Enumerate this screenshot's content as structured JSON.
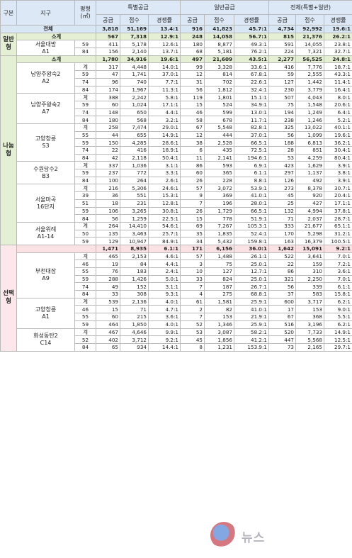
{
  "headers": {
    "type": "구분",
    "complex": "지구",
    "area": "평형\n(㎡)",
    "special": "특별공급",
    "general": "일반공급",
    "all": "전체(특별+일반)",
    "supply": "공급",
    "apply": "접수",
    "ratio": "경쟁률"
  },
  "total": {
    "label": "전체",
    "values": [
      "3,818",
      "51,169",
      "13.4:1",
      "916",
      "41,823",
      "45.7:1",
      "4,734",
      "92,992",
      "19.6:1"
    ]
  },
  "groups": [
    {
      "type": "일반\n형",
      "style": "general",
      "subtotal": {
        "label": "소계",
        "values": [
          "567",
          "7,318",
          "12.9:1",
          "248",
          "14,058",
          "56.7:1",
          "815",
          "21,376",
          "26.2:1"
        ]
      },
      "complexes": [
        {
          "name": "서울대방\nA1",
          "rows": [
            {
              "area": "59",
              "values": [
                "411",
                "5,178",
                "12.6:1",
                "180",
                "8,877",
                "49.3:1",
                "591",
                "14,055",
                "23.8:1"
              ]
            },
            {
              "area": "84",
              "values": [
                "156",
                "2,140",
                "13.7:1",
                "68",
                "5,181",
                "76.2:1",
                "224",
                "7,321",
                "32.7:1"
              ]
            }
          ]
        }
      ]
    },
    {
      "type": "나눔\n형",
      "style": "share",
      "subtotal": {
        "label": "소계",
        "values": [
          "1,780",
          "34,916",
          "19.6:1",
          "497",
          "21,609",
          "43.5:1",
          "2,277",
          "56,525",
          "24.8:1"
        ]
      },
      "complexes": [
        {
          "name": "남양주왕숙2\nA2",
          "rows": [
            {
              "area": "계",
              "values": [
                "317",
                "4,448",
                "14.0:1",
                "99",
                "3,328",
                "33.6:1",
                "416",
                "7,776",
                "18.7:1"
              ]
            },
            {
              "area": "59",
              "values": [
                "47",
                "1,741",
                "37.0:1",
                "12",
                "814",
                "67.8:1",
                "59",
                "2,555",
                "43.3:1"
              ]
            },
            {
              "area": "74",
              "values": [
                "96",
                "740",
                "7.7:1",
                "31",
                "702",
                "22.6:1",
                "127",
                "1,442",
                "11.4:1"
              ]
            },
            {
              "area": "84",
              "values": [
                "174",
                "1,967",
                "11.3:1",
                "56",
                "1,812",
                "32.4:1",
                "230",
                "3,779",
                "16.4:1"
              ]
            }
          ]
        },
        {
          "name": "남양주왕숙2\nA7",
          "rows": [
            {
              "area": "계",
              "values": [
                "388",
                "2,242",
                "5.8:1",
                "119",
                "1,801",
                "15.1:1",
                "507",
                "4,043",
                "8.0:1"
              ]
            },
            {
              "area": "59",
              "values": [
                "60",
                "1,024",
                "17.1:1",
                "15",
                "524",
                "34.9:1",
                "75",
                "1,548",
                "20.6:1"
              ]
            },
            {
              "area": "74",
              "values": [
                "148",
                "650",
                "4.4:1",
                "46",
                "599",
                "13.0:1",
                "194",
                "1,249",
                "6.4:1"
              ]
            },
            {
              "area": "84",
              "values": [
                "180",
                "568",
                "3.2:1",
                "58",
                "678",
                "11.7:1",
                "238",
                "1,246",
                "5.2:1"
              ]
            }
          ]
        },
        {
          "name": "고양창릉\nS3",
          "rows": [
            {
              "area": "계",
              "values": [
                "258",
                "7,474",
                "29.0:1",
                "67",
                "5,548",
                "82.8:1",
                "325",
                "13,022",
                "40.1:1"
              ]
            },
            {
              "area": "55",
              "values": [
                "44",
                "655",
                "14.9:1",
                "12",
                "444",
                "37.0:1",
                "56",
                "1,099",
                "19.6:1"
              ]
            },
            {
              "area": "59",
              "values": [
                "150",
                "4,285",
                "28.6:1",
                "38",
                "2,528",
                "66.5:1",
                "188",
                "6,813",
                "36.2:1"
              ]
            },
            {
              "area": "74",
              "values": [
                "22",
                "416",
                "18.9:1",
                "6",
                "435",
                "72.5:1",
                "28",
                "851",
                "30.4:1"
              ]
            },
            {
              "area": "84",
              "values": [
                "42",
                "2,118",
                "50.4:1",
                "11",
                "2,141",
                "194.6:1",
                "53",
                "4,259",
                "80.4:1"
              ]
            }
          ]
        },
        {
          "name": "수원당수2\nB3",
          "rows": [
            {
              "area": "계",
              "values": [
                "337",
                "1,036",
                "3.1:1",
                "86",
                "593",
                "6.9:1",
                "423",
                "1,629",
                "3.9:1"
              ]
            },
            {
              "area": "59",
              "values": [
                "237",
                "772",
                "3.3:1",
                "60",
                "365",
                "6.1:1",
                "297",
                "1,137",
                "3.8:1"
              ]
            },
            {
              "area": "84",
              "values": [
                "100",
                "264",
                "2.6:1",
                "26",
                "228",
                "8.8:1",
                "126",
                "492",
                "3.9:1"
              ]
            }
          ]
        },
        {
          "name": "서울마곡\n16단지",
          "rows": [
            {
              "area": "계",
              "values": [
                "216",
                "5,306",
                "24.6:1",
                "57",
                "3,072",
                "53.9:1",
                "273",
                "8,378",
                "30.7:1"
              ]
            },
            {
              "area": "39",
              "values": [
                "36",
                "551",
                "15.3:1",
                "9",
                "369",
                "41.0:1",
                "45",
                "920",
                "20.4:1"
              ]
            },
            {
              "area": "51",
              "values": [
                "18",
                "231",
                "12.8:1",
                "7",
                "196",
                "28.0:1",
                "25",
                "427",
                "17.1:1"
              ]
            },
            {
              "area": "59",
              "values": [
                "106",
                "3,265",
                "30.8:1",
                "26",
                "1,729",
                "66.5:1",
                "132",
                "4,994",
                "37.8:1"
              ]
            },
            {
              "area": "84",
              "values": [
                "56",
                "1,259",
                "22.5:1",
                "15",
                "778",
                "51.9:1",
                "71",
                "2,037",
                "28.7:1"
              ]
            }
          ]
        },
        {
          "name": "서울위례\nA1-14",
          "rows": [
            {
              "area": "계",
              "values": [
                "264",
                "14,410",
                "54.6:1",
                "69",
                "7,267",
                "105.3:1",
                "333",
                "21,677",
                "65.1:1"
              ]
            },
            {
              "area": "50",
              "values": [
                "135",
                "3,463",
                "25.7:1",
                "35",
                "1,835",
                "52.4:1",
                "170",
                "5,298",
                "31.2:1"
              ]
            },
            {
              "area": "59",
              "values": [
                "129",
                "10,947",
                "84.9:1",
                "34",
                "5,432",
                "159.8:1",
                "163",
                "16,379",
                "100.5:1"
              ]
            }
          ]
        }
      ]
    },
    {
      "type": "선택\n형",
      "style": "select",
      "subtotal": {
        "label": "",
        "values": [
          "1,471",
          "8,935",
          "6.1:1",
          "171",
          "6,156",
          "36.0:1",
          "1,642",
          "15,091",
          "9.2:1"
        ]
      },
      "complexes": [
        {
          "name": "부천대장\nA9",
          "rows": [
            {
              "area": "계",
              "values": [
                "465",
                "2,153",
                "4.6:1",
                "57",
                "1,488",
                "26.1:1",
                "522",
                "3,641",
                "7.0:1"
              ]
            },
            {
              "area": "46",
              "values": [
                "19",
                "84",
                "4.4:1",
                "3",
                "75",
                "25.0:1",
                "22",
                "159",
                "7.2:1"
              ]
            },
            {
              "area": "55",
              "values": [
                "76",
                "183",
                "2.4:1",
                "10",
                "127",
                "12.7:1",
                "86",
                "310",
                "3.6:1"
              ]
            },
            {
              "area": "59",
              "values": [
                "288",
                "1,426",
                "5.0:1",
                "33",
                "824",
                "25.0:1",
                "321",
                "2,250",
                "7.0:1"
              ]
            },
            {
              "area": "74",
              "values": [
                "49",
                "152",
                "3.1:1",
                "7",
                "187",
                "26.7:1",
                "56",
                "339",
                "6.1:1"
              ]
            },
            {
              "area": "84",
              "values": [
                "33",
                "308",
                "9.3:1",
                "4",
                "275",
                "68.8:1",
                "37",
                "583",
                "15.8:1"
              ]
            }
          ]
        },
        {
          "name": "고양창릉\nA1",
          "rows": [
            {
              "area": "계",
              "values": [
                "539",
                "2,136",
                "4.0:1",
                "61",
                "1,581",
                "25.9:1",
                "600",
                "3,717",
                "6.2:1"
              ]
            },
            {
              "area": "46",
              "values": [
                "15",
                "71",
                "4.7:1",
                "2",
                "82",
                "41.0:1",
                "17",
                "153",
                "9.0:1"
              ]
            },
            {
              "area": "55",
              "values": [
                "60",
                "215",
                "3.6:1",
                "7",
                "153",
                "21.9:1",
                "67",
                "368",
                "5.5:1"
              ]
            },
            {
              "area": "59",
              "values": [
                "464",
                "1,850",
                "4.0:1",
                "52",
                "1,346",
                "25.9:1",
                "516",
                "3,196",
                "6.2:1"
              ]
            }
          ]
        },
        {
          "name": "화성동탄2\nC14",
          "rows": [
            {
              "area": "계",
              "values": [
                "467",
                "4,646",
                "9.9:1",
                "53",
                "3,087",
                "58.2:1",
                "520",
                "7,733",
                "14.9:1"
              ]
            },
            {
              "area": "52",
              "values": [
                "402",
                "3,712",
                "9.2:1",
                "45",
                "1,856",
                "41.2:1",
                "447",
                "5,568",
                "12.5:1"
              ]
            },
            {
              "area": "84",
              "values": [
                "65",
                "934",
                "14.4:1",
                "8",
                "1,231",
                "153.9:1",
                "73",
                "2,165",
                "29.7:1"
              ]
            }
          ]
        }
      ]
    }
  ],
  "watermark": {
    "text": "뉴스"
  }
}
